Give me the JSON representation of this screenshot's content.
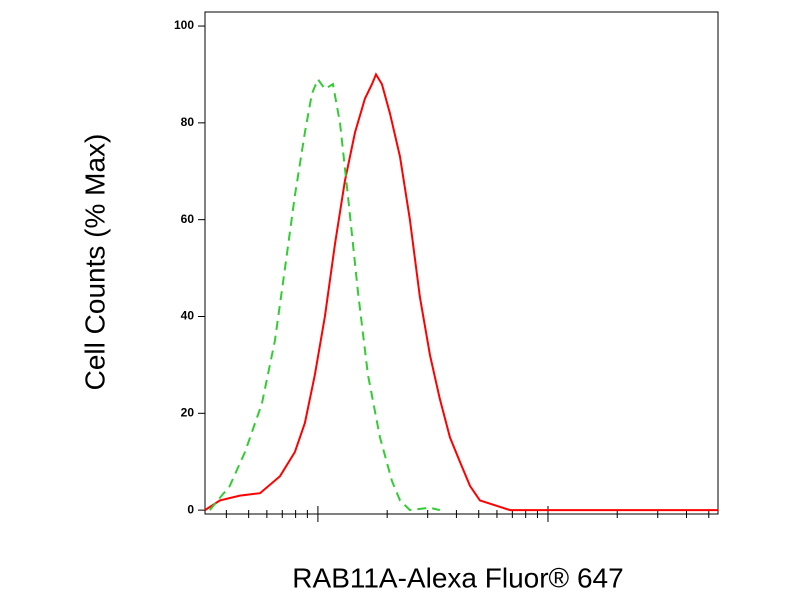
{
  "chart_data": {
    "type": "line",
    "xlabel": "RAB11A-Alexa Fluor® 647",
    "ylabel": "Cell Counts (% Max)",
    "xscale": "log",
    "xlim": [
      323,
      54830
    ],
    "ylim": [
      -0.8,
      102.9
    ],
    "xticks": [
      1000,
      10000
    ],
    "xminorticks": [
      400,
      500,
      600,
      700,
      800,
      900,
      2000,
      3000,
      4000,
      5000,
      6000,
      7000,
      8000,
      9000,
      20000,
      30000,
      40000,
      50000
    ],
    "yticks": [
      0,
      20,
      40,
      60,
      80,
      100
    ],
    "series": [
      {
        "color": "#ff0000",
        "dash": "solid",
        "x": [
          323,
          375,
          458,
          560,
          684,
          794,
          878,
          970,
          1072,
          1186,
          1310,
          1449,
          1600,
          1718,
          1788,
          1898,
          2056,
          2274,
          2512,
          2774,
          3069,
          3388,
          3750,
          4140,
          4581,
          5058,
          5888,
          6839,
          54830
        ],
        "values": [
          0,
          2,
          3,
          3.5,
          7,
          12,
          18,
          28,
          40,
          55,
          68,
          78,
          85,
          88,
          90,
          88,
          82,
          73,
          60,
          44,
          32,
          23,
          15,
          10,
          5,
          2,
          1,
          0,
          0
        ]
      },
      {
        "color": "#33cc33",
        "dash": "dashed",
        "x": [
          339,
          414,
          482,
          571,
          650,
          719,
          794,
          878,
          942,
          1000,
          1072,
          1162,
          1247,
          1350,
          1493,
          1649,
          1861,
          2099,
          2274,
          2512,
          3069,
          3388
        ],
        "values": [
          0,
          5,
          12,
          22,
          35,
          50,
          65,
          78,
          86,
          89,
          87,
          88,
          80,
          65,
          45,
          28,
          15,
          6,
          2,
          0,
          0.5,
          0
        ]
      }
    ]
  }
}
